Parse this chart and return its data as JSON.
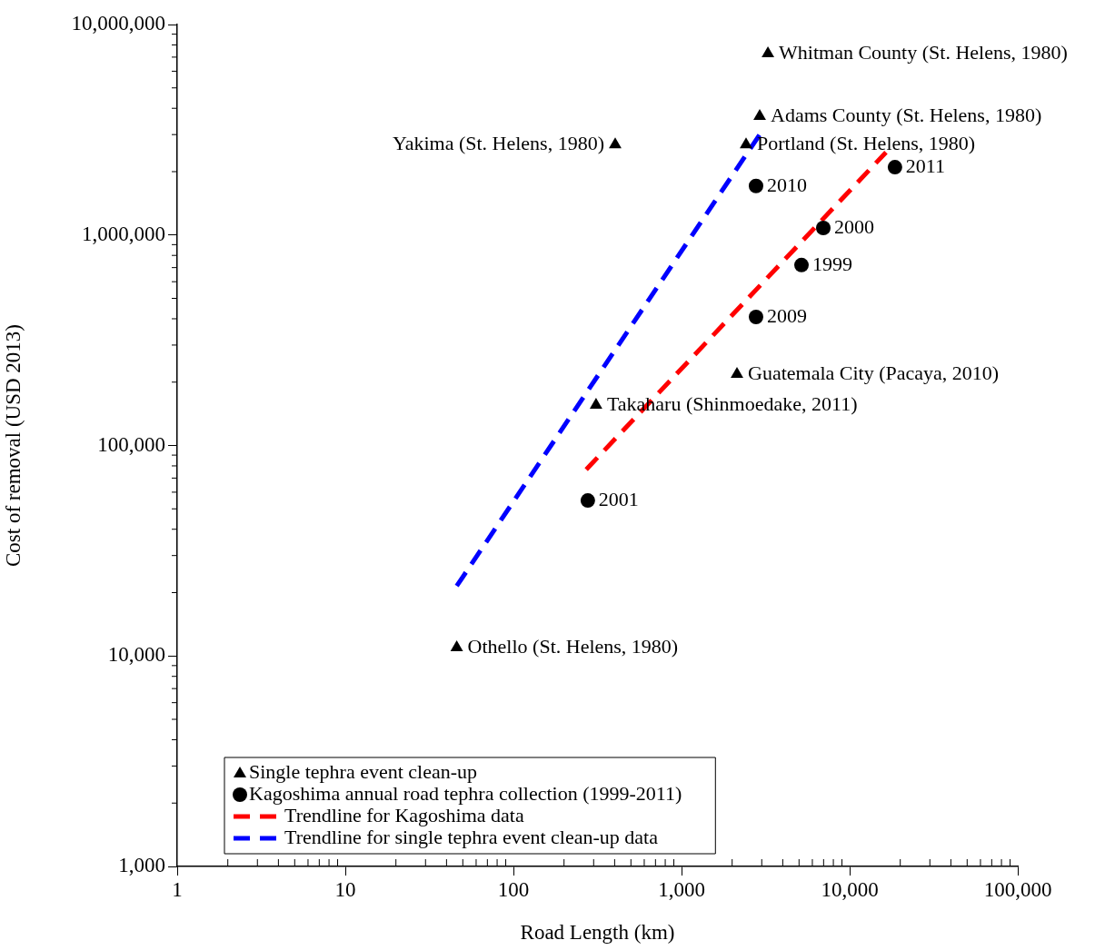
{
  "chart_data": {
    "type": "scatter",
    "xlabel": "Road Length (km)",
    "ylabel": "Cost of removal (USD 2013)",
    "log": "xy",
    "grid": false,
    "legend": "bottom left",
    "xlim": [
      1,
      100000
    ],
    "xticks": [
      1,
      10,
      100,
      {
        "value": 1000,
        "label": "1,000"
      },
      {
        "value": 10000,
        "label": "10,000"
      },
      {
        "value": 100000,
        "label": "100,000"
      }
    ],
    "ylim": [
      1000,
      10000000
    ],
    "yticks": [
      {
        "value": 1000,
        "label": "1,000"
      },
      {
        "value": 10000,
        "label": "10,000"
      },
      {
        "value": 100000,
        "label": "100,000"
      },
      {
        "value": 1000000,
        "label": "1,000,000"
      },
      {
        "value": 10000000,
        "label": "10,000,000"
      }
    ],
    "series": [
      {
        "name": "Single tephra event clean-up",
        "type": "scatter",
        "marker": "triangle",
        "color": "#000000",
        "x": [
          3265,
          2917,
          2420,
          403,
          310,
          2137,
          46
        ],
        "values": [
          7280000,
          3670000,
          2690000,
          2690000,
          155600,
          218000,
          10960
        ]
      },
      {
        "name": "Kagoshima annual road tephra collection (1999-2011)",
        "type": "scatter",
        "marker": "circle",
        "color": "#000000",
        "x": [
          18600,
          2774,
          6970,
          5170,
          2774,
          277
        ],
        "values": [
          2100000,
          1710000,
          1080000,
          720000,
          408000,
          54800
        ]
      },
      {
        "name": "Trendline for Kagoshima data",
        "type": "line",
        "marker": "none",
        "line_style": "dashed",
        "color": "#ff0000",
        "x": [
          271,
          16450
        ],
        "values": [
          76900,
          2470000
        ]
      },
      {
        "name": "Trendline for single tephra event clean-up data",
        "type": "line",
        "marker": "none",
        "line_style": "dashed",
        "color": "#0000ff",
        "x": [
          46,
          2917
        ],
        "values": [
          21500,
          3000000
        ]
      }
    ],
    "annotations": [
      {
        "text": "Whitman County (St. Helens, 1980)",
        "x": 3265,
        "y": 7280000
      },
      {
        "text": "Adams County (St. Helens, 1980)",
        "x": 2917,
        "y": 3670000
      },
      {
        "text": "Portland (St. Helens, 1980)",
        "x": 2420,
        "y": 2690000
      },
      {
        "text": "Yakima (St. Helens, 1980)",
        "x": 403,
        "y": 2690000
      },
      {
        "text": "Takaharu (Shinmoedake, 2011)",
        "x": 310,
        "y": 155600
      },
      {
        "text": "Guatemala City (Pacaya, 2010)",
        "x": 2137,
        "y": 218000
      },
      {
        "text": "Othello (St. Helens, 1980)",
        "x": 46,
        "y": 10960
      },
      {
        "text": "2011",
        "x": 18600,
        "y": 2100000
      },
      {
        "text": "2010",
        "x": 2774,
        "y": 1710000
      },
      {
        "text": "2000",
        "x": 6970,
        "y": 1080000
      },
      {
        "text": "1999",
        "x": 5170,
        "y": 720000
      },
      {
        "text": "2009",
        "x": 2774,
        "y": 408000
      },
      {
        "text": "2001",
        "x": 277,
        "y": 54800
      }
    ]
  }
}
